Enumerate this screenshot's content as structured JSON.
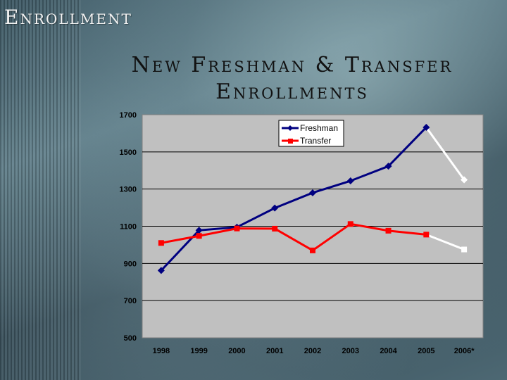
{
  "slide_title": "Enrollment",
  "chart_data": {
    "type": "line",
    "title": "New Freshman & Transfer Enrollments",
    "categories": [
      "1998",
      "1999",
      "2000",
      "2001",
      "2002",
      "2003",
      "2004",
      "2005",
      "2006*"
    ],
    "series": [
      {
        "name": "Freshman",
        "color": "#000080",
        "projected_color": "#ffffff",
        "values": [
          862,
          1078,
          1095,
          1198,
          1280,
          1344,
          1423,
          1632,
          1350
        ]
      },
      {
        "name": "Transfer",
        "color": "#ff0000",
        "projected_color": "#ffffff",
        "values": [
          1010,
          1048,
          1088,
          1087,
          970,
          1112,
          1076,
          1055,
          975
        ]
      }
    ],
    "projected_from_index": 7,
    "ylim": [
      500,
      1700
    ],
    "yticks": [
      500,
      700,
      900,
      1100,
      1300,
      1500,
      1700
    ],
    "xlabel": "",
    "ylabel": "",
    "grid": true,
    "legend_position": "top-right",
    "plot_background": "#c0c0c0"
  }
}
